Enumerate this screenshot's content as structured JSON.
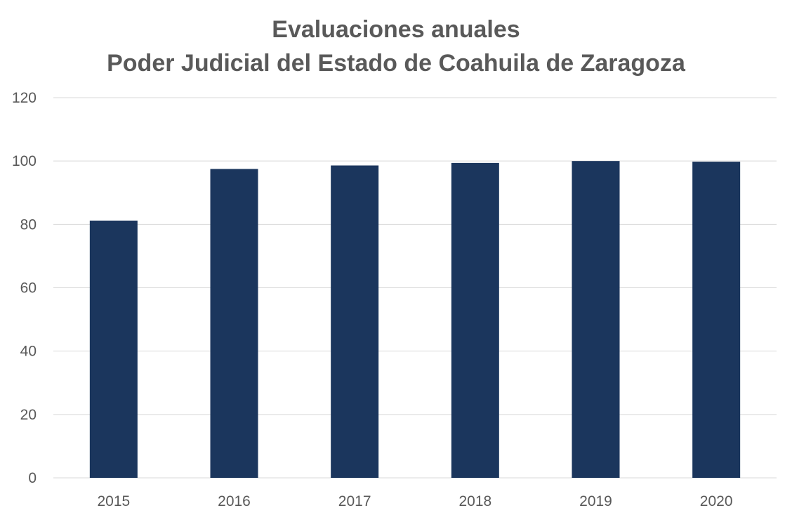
{
  "chart_data": {
    "type": "bar",
    "title": [
      "Evaluaciones anuales",
      "Poder Judicial del Estado de Coahuila de Zaragoza"
    ],
    "categories": [
      "2015",
      "2016",
      "2017",
      "2018",
      "2019",
      "2020"
    ],
    "values": [
      81.2,
      97.5,
      98.6,
      99.4,
      100,
      99.8
    ],
    "ylim": [
      0,
      120
    ],
    "yticks": [
      0,
      20,
      40,
      60,
      80,
      100,
      120
    ],
    "grid": true,
    "bar_color": "#1b365d",
    "grid_color": "#d9d9d9",
    "text_color": "#595959"
  }
}
